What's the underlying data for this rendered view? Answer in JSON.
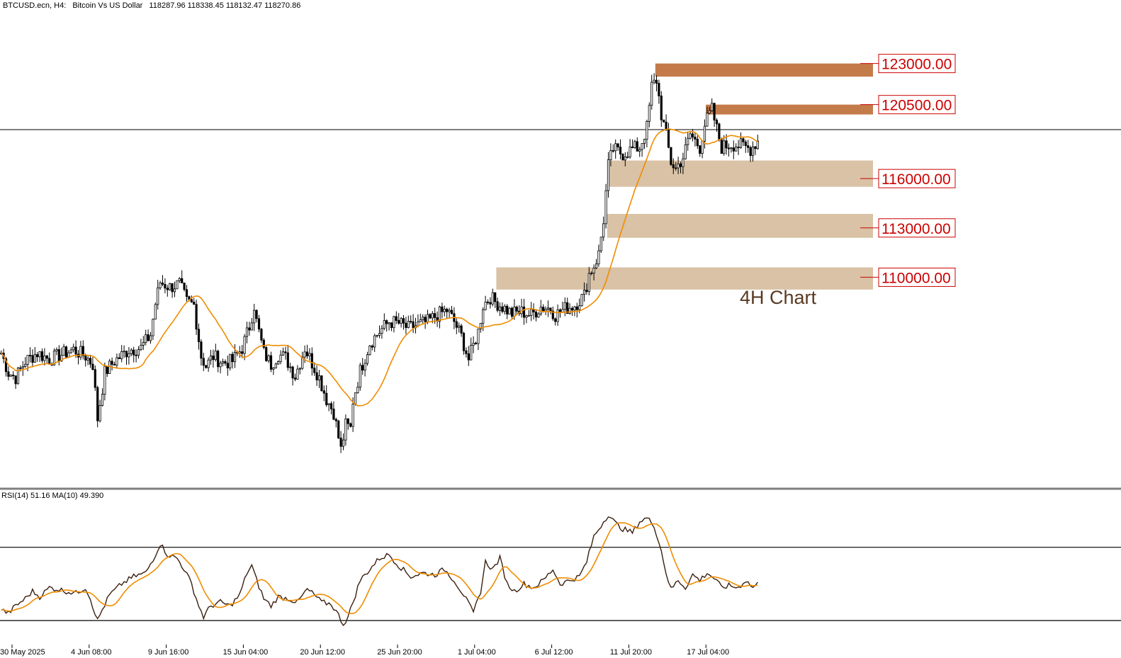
{
  "header": {
    "symbol": "BTCUSD.ecn, H4:",
    "description": "Bitcoin Vs US Dollar",
    "ohlc": "118287.96 118338.45 118132.47 118270.86"
  },
  "annotation": "4H Chart",
  "rsi_label": "RSI(14) 51.16 MA(10) 49.390",
  "colors": {
    "candle": "#000000",
    "ma": "#f08c00",
    "rsi_ma": "#f08c00",
    "resistance_zone": "#c47b4a",
    "support_zone": "#d9c2a5",
    "level_text": "#cc0000"
  },
  "chart_data": [
    {
      "type": "candlestick",
      "symbol": "BTCUSD.ecn",
      "timeframe": "H4",
      "x_tick_labels": [
        "30 May 2025",
        "4 Jun 08:00",
        "9 Jun 16:00",
        "15 Jun 04:00",
        "20 Jun 12:00",
        "25 Jun 20:00",
        "1 Jul 04:00",
        "6 Jul 12:00",
        "11 Jul 20:00",
        "17 Jul 04:00"
      ],
      "x_range": [
        0,
        320
      ],
      "tick_index": [
        5,
        37,
        69,
        101,
        133,
        165,
        197,
        229,
        261,
        293
      ],
      "close_series_anchors": [
        [
          0,
          105400
        ],
        [
          3,
          104200
        ],
        [
          6,
          103900
        ],
        [
          10,
          104900
        ],
        [
          15,
          105400
        ],
        [
          20,
          105000
        ],
        [
          25,
          105300
        ],
        [
          30,
          105600
        ],
        [
          35,
          105200
        ],
        [
          38,
          104700
        ],
        [
          40,
          101400
        ],
        [
          43,
          104200
        ],
        [
          47,
          104900
        ],
        [
          53,
          105600
        ],
        [
          58,
          105700
        ],
        [
          62,
          106500
        ],
        [
          64,
          108400
        ],
        [
          66,
          109700
        ],
        [
          70,
          109400
        ],
        [
          74,
          109600
        ],
        [
          77,
          108500
        ],
        [
          80,
          108300
        ],
        [
          83,
          105200
        ],
        [
          85,
          104600
        ],
        [
          88,
          105200
        ],
        [
          92,
          104800
        ],
        [
          96,
          104900
        ],
        [
          100,
          105700
        ],
        [
          103,
          107000
        ],
        [
          105,
          108300
        ],
        [
          106,
          107300
        ],
        [
          109,
          105400
        ],
        [
          112,
          104700
        ],
        [
          115,
          105300
        ],
        [
          118,
          105100
        ],
        [
          122,
          104000
        ],
        [
          126,
          105700
        ],
        [
          129,
          104800
        ],
        [
          132,
          103900
        ],
        [
          135,
          102600
        ],
        [
          138,
          101800
        ],
        [
          141,
          99500
        ],
        [
          143,
          101000
        ],
        [
          145,
          100800
        ],
        [
          146,
          102500
        ],
        [
          149,
          104300
        ],
        [
          153,
          106000
        ],
        [
          157,
          106700
        ],
        [
          161,
          107300
        ],
        [
          165,
          107200
        ],
        [
          169,
          106900
        ],
        [
          173,
          107100
        ],
        [
          177,
          107300
        ],
        [
          181,
          107700
        ],
        [
          185,
          108000
        ],
        [
          188,
          107300
        ],
        [
          191,
          106400
        ],
        [
          194,
          105000
        ],
        [
          198,
          106700
        ],
        [
          200,
          108300
        ],
        [
          203,
          108800
        ],
        [
          205,
          108500
        ],
        [
          208,
          108200
        ],
        [
          212,
          107800
        ],
        [
          216,
          107900
        ],
        [
          220,
          107700
        ],
        [
          224,
          108200
        ],
        [
          228,
          108100
        ],
        [
          230,
          107700
        ],
        [
          234,
          108100
        ],
        [
          238,
          108300
        ],
        [
          242,
          108900
        ],
        [
          244,
          110200
        ],
        [
          246,
          110700
        ],
        [
          248,
          111400
        ],
        [
          250,
          113500
        ],
        [
          252,
          116800
        ],
        [
          254,
          117800
        ],
        [
          258,
          117500
        ],
        [
          262,
          117800
        ],
        [
          265,
          117900
        ],
        [
          268,
          119100
        ],
        [
          270,
          121600
        ],
        [
          272,
          122000
        ],
        [
          274,
          119900
        ],
        [
          276,
          118600
        ],
        [
          278,
          117000
        ],
        [
          280,
          116600
        ],
        [
          283,
          117300
        ],
        [
          286,
          118700
        ],
        [
          288,
          118300
        ],
        [
          290,
          117900
        ],
        [
          292,
          119300
        ],
        [
          295,
          120200
        ],
        [
          297,
          119000
        ],
        [
          299,
          117900
        ],
        [
          303,
          118100
        ],
        [
          307,
          118000
        ],
        [
          311,
          117800
        ],
        [
          314,
          118300
        ]
      ],
      "ma_label_in_legend": false,
      "ylim": [
        98000,
        126000
      ],
      "last_price_line": 118270.86,
      "levels": [
        {
          "label": "123000.00",
          "price": 123000,
          "zone": [
            122200,
            123000
          ],
          "start_index": 272,
          "kind": "resistance"
        },
        {
          "label": "120500.00",
          "price": 120500,
          "zone": [
            119900,
            120500
          ],
          "start_index": 293,
          "kind": "resistance"
        },
        {
          "label": "116000.00",
          "price": 116000,
          "zone": [
            115500,
            117100
          ],
          "start_index": 252,
          "kind": "support"
        },
        {
          "label": "113000.00",
          "price": 113000,
          "zone": [
            112400,
            113850
          ],
          "start_index": 252,
          "kind": "support"
        },
        {
          "label": "110000.00",
          "price": 110000,
          "zone": [
            109250,
            110600
          ],
          "start_index": 206,
          "kind": "support"
        }
      ]
    },
    {
      "type": "line",
      "indicator": "RSI(14)",
      "ma_period": 10,
      "rsi_value": 51.16,
      "rsi_ma_value": 49.39,
      "ylim": [
        20,
        95
      ],
      "levels": [
        70,
        30
      ],
      "rsi_anchors": [
        [
          0,
          36
        ],
        [
          3,
          34
        ],
        [
          6,
          38
        ],
        [
          10,
          42
        ],
        [
          13,
          46
        ],
        [
          16,
          43
        ],
        [
          20,
          48
        ],
        [
          24,
          47
        ],
        [
          27,
          46
        ],
        [
          31,
          45
        ],
        [
          35,
          48
        ],
        [
          37,
          42
        ],
        [
          40,
          30
        ],
        [
          42,
          36
        ],
        [
          45,
          44
        ],
        [
          50,
          50
        ],
        [
          55,
          54
        ],
        [
          60,
          56
        ],
        [
          64,
          66
        ],
        [
          66,
          72
        ],
        [
          69,
          66
        ],
        [
          73,
          64
        ],
        [
          76,
          58
        ],
        [
          79,
          50
        ],
        [
          82,
          38
        ],
        [
          84,
          32
        ],
        [
          87,
          38
        ],
        [
          91,
          40
        ],
        [
          95,
          38
        ],
        [
          99,
          44
        ],
        [
          102,
          56
        ],
        [
          104,
          60
        ],
        [
          106,
          52
        ],
        [
          109,
          42
        ],
        [
          112,
          38
        ],
        [
          115,
          43
        ],
        [
          119,
          42
        ],
        [
          123,
          40
        ],
        [
          127,
          47
        ],
        [
          130,
          44
        ],
        [
          133,
          40
        ],
        [
          137,
          39
        ],
        [
          140,
          33
        ],
        [
          142,
          28
        ],
        [
          144,
          32
        ],
        [
          146,
          40
        ],
        [
          149,
          52
        ],
        [
          153,
          58
        ],
        [
          157,
          64
        ],
        [
          161,
          66
        ],
        [
          165,
          60
        ],
        [
          170,
          54
        ],
        [
          175,
          56
        ],
        [
          180,
          55
        ],
        [
          184,
          58
        ],
        [
          188,
          52
        ],
        [
          192,
          44
        ],
        [
          196,
          34
        ],
        [
          199,
          46
        ],
        [
          201,
          62
        ],
        [
          204,
          58
        ],
        [
          207,
          64
        ],
        [
          210,
          50
        ],
        [
          213,
          46
        ],
        [
          217,
          50
        ],
        [
          221,
          48
        ],
        [
          225,
          52
        ],
        [
          229,
          58
        ],
        [
          232,
          50
        ],
        [
          236,
          52
        ],
        [
          240,
          54
        ],
        [
          243,
          62
        ],
        [
          246,
          76
        ],
        [
          248,
          80
        ],
        [
          250,
          84
        ],
        [
          252,
          88
        ],
        [
          255,
          83
        ],
        [
          258,
          80
        ],
        [
          262,
          78
        ],
        [
          265,
          84
        ],
        [
          268,
          86
        ],
        [
          271,
          82
        ],
        [
          274,
          68
        ],
        [
          276,
          56
        ],
        [
          278,
          47
        ],
        [
          281,
          52
        ],
        [
          284,
          48
        ],
        [
          287,
          55
        ],
        [
          290,
          52
        ],
        [
          293,
          56
        ],
        [
          296,
          53
        ],
        [
          299,
          48
        ],
        [
          302,
          49
        ],
        [
          306,
          48
        ],
        [
          309,
          52
        ],
        [
          312,
          48
        ],
        [
          315,
          51
        ]
      ]
    }
  ]
}
